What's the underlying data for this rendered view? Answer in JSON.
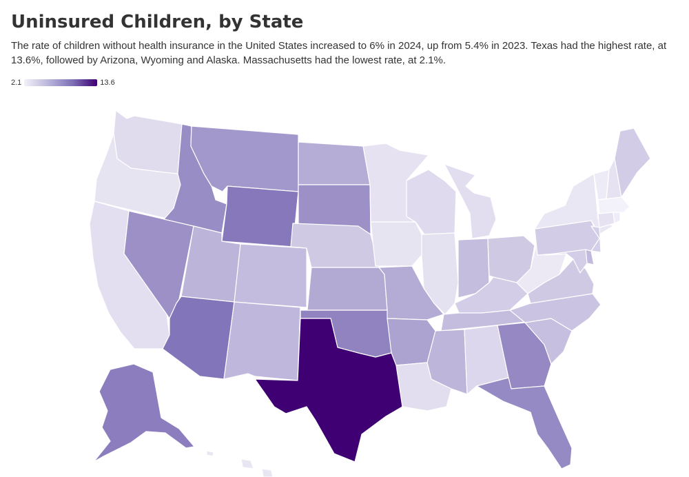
{
  "title": "Uninsured Children, by State",
  "subtitle": "The rate of children without health insurance in the United States increased to 6% in 2024, up from 5.4% in 2023. Texas had the highest rate, at 13.6%, followed by Arizona, Wyoming and Alaska. Massachusetts had the lowest rate, at 2.1%.",
  "legend": {
    "min_label": "2.1",
    "max_label": "13.6",
    "min_value": 2.1,
    "max_value": 13.6,
    "color_low": "#f3f1f9",
    "color_high": "#3e0073"
  },
  "states": [
    {
      "id": "WA",
      "value": 3.4
    },
    {
      "id": "OR",
      "value": 2.9
    },
    {
      "id": "CA",
      "value": 3.2
    },
    {
      "id": "NV",
      "value": 8.1
    },
    {
      "id": "ID",
      "value": 8.3
    },
    {
      "id": "MT",
      "value": 7.6
    },
    {
      "id": "WY",
      "value": 9.6
    },
    {
      "id": "UT",
      "value": 5.9
    },
    {
      "id": "CO",
      "value": 5.4
    },
    {
      "id": "AZ",
      "value": 9.8
    },
    {
      "id": "NM",
      "value": 5.6
    },
    {
      "id": "ND",
      "value": 6.3
    },
    {
      "id": "SD",
      "value": 8.1
    },
    {
      "id": "NE",
      "value": 4.6
    },
    {
      "id": "KS",
      "value": 6.5
    },
    {
      "id": "OK",
      "value": 8.9
    },
    {
      "id": "TX",
      "value": 13.6
    },
    {
      "id": "MN",
      "value": 3.0
    },
    {
      "id": "IA",
      "value": 2.9
    },
    {
      "id": "MO",
      "value": 6.4
    },
    {
      "id": "AR",
      "value": 6.9
    },
    {
      "id": "LA",
      "value": 3.3
    },
    {
      "id": "WI",
      "value": 3.5
    },
    {
      "id": "IL",
      "value": 3.1
    },
    {
      "id": "MI",
      "value": 3.3
    },
    {
      "id": "IN",
      "value": 5.3
    },
    {
      "id": "OH",
      "value": 4.6
    },
    {
      "id": "KY",
      "value": 4.3
    },
    {
      "id": "TN",
      "value": 5.3
    },
    {
      "id": "MS",
      "value": 5.8
    },
    {
      "id": "AL",
      "value": 3.7
    },
    {
      "id": "GA",
      "value": 8.6
    },
    {
      "id": "FL",
      "value": 8.5
    },
    {
      "id": "SC",
      "value": 5.2
    },
    {
      "id": "NC",
      "value": 4.9
    },
    {
      "id": "VA",
      "value": 4.6
    },
    {
      "id": "WV",
      "value": 2.6
    },
    {
      "id": "PA",
      "value": 4.4
    },
    {
      "id": "NY",
      "value": 2.7
    },
    {
      "id": "VT",
      "value": 2.5
    },
    {
      "id": "NH",
      "value": 3.0
    },
    {
      "id": "ME",
      "value": 4.4
    },
    {
      "id": "MA",
      "value": 2.1
    },
    {
      "id": "CT",
      "value": 3.0
    },
    {
      "id": "RI",
      "value": 2.4
    },
    {
      "id": "NJ",
      "value": 4.2
    },
    {
      "id": "DE",
      "value": 5.5
    },
    {
      "id": "MD",
      "value": 4.3
    },
    {
      "id": "AK",
      "value": 9.2
    },
    {
      "id": "HI",
      "value": 2.8
    }
  ]
}
